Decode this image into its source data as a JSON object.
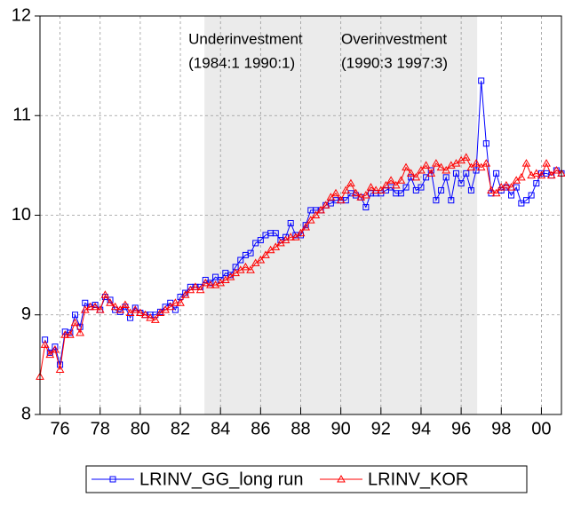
{
  "chart_data": {
    "type": "line",
    "x": [
      1975,
      1975.25,
      1975.5,
      1975.75,
      1976,
      1976.25,
      1976.5,
      1976.75,
      1977,
      1977.25,
      1977.5,
      1977.75,
      1978,
      1978.25,
      1978.5,
      1978.75,
      1979,
      1979.25,
      1979.5,
      1979.75,
      1980,
      1980.25,
      1980.5,
      1980.75,
      1981,
      1981.25,
      1981.5,
      1981.75,
      1982,
      1982.25,
      1982.5,
      1982.75,
      1983,
      1983.25,
      1983.5,
      1983.75,
      1984,
      1984.25,
      1984.5,
      1984.75,
      1985,
      1985.25,
      1985.5,
      1985.75,
      1986,
      1986.25,
      1986.5,
      1986.75,
      1987,
      1987.25,
      1987.5,
      1987.75,
      1988,
      1988.25,
      1988.5,
      1988.75,
      1989,
      1989.25,
      1989.5,
      1989.75,
      1990,
      1990.25,
      1990.5,
      1990.75,
      1991,
      1991.25,
      1991.5,
      1991.75,
      1992,
      1992.25,
      1992.5,
      1992.75,
      1993,
      1993.25,
      1993.5,
      1993.75,
      1994,
      1994.25,
      1994.5,
      1994.75,
      1995,
      1995.25,
      1995.5,
      1995.75,
      1996,
      1996.25,
      1996.5,
      1996.75,
      1997,
      1997.25,
      1997.5,
      1997.75,
      1998,
      1998.25,
      1998.5,
      1998.75,
      1999,
      1999.25,
      1999.5,
      1999.75,
      2000,
      2000.25,
      2000.5,
      2000.75,
      2001
    ],
    "series": [
      {
        "name": "LRINV_GG_long run",
        "color": "#0000ff",
        "marker": "square",
        "values": [
          null,
          8.75,
          8.62,
          8.68,
          8.5,
          8.83,
          8.82,
          9.0,
          8.88,
          9.12,
          9.08,
          9.1,
          9.05,
          9.18,
          9.15,
          9.05,
          9.03,
          9.08,
          8.97,
          9.07,
          9.02,
          9.0,
          9.0,
          9.0,
          9.03,
          9.08,
          9.12,
          9.05,
          9.18,
          9.22,
          9.28,
          9.28,
          9.28,
          9.35,
          9.32,
          9.38,
          9.35,
          9.42,
          9.4,
          9.48,
          9.55,
          9.6,
          9.62,
          9.72,
          9.75,
          9.8,
          9.82,
          9.82,
          9.75,
          9.78,
          9.92,
          9.8,
          9.8,
          9.9,
          10.05,
          10.05,
          10.05,
          10.1,
          10.12,
          10.15,
          10.15,
          10.15,
          10.22,
          10.2,
          10.18,
          10.08,
          10.22,
          10.22,
          10.22,
          10.25,
          10.28,
          10.22,
          10.22,
          10.28,
          10.38,
          10.25,
          10.28,
          10.38,
          10.45,
          10.15,
          10.25,
          10.38,
          10.15,
          10.42,
          10.32,
          10.42,
          10.25,
          10.45,
          11.35,
          10.72,
          10.22,
          10.42,
          10.25,
          10.28,
          10.2,
          10.28,
          10.12,
          10.15,
          10.2,
          10.32,
          10.42,
          10.42,
          10.4,
          10.45,
          10.42
        ]
      },
      {
        "name": "LRINV_KOR",
        "color": "#ff0000",
        "marker": "triangle",
        "values": [
          8.38,
          8.7,
          8.6,
          8.65,
          8.45,
          8.8,
          8.8,
          8.92,
          8.82,
          9.05,
          9.08,
          9.08,
          9.05,
          9.2,
          9.12,
          9.08,
          9.05,
          9.1,
          9.02,
          9.05,
          9.02,
          9.0,
          8.97,
          8.95,
          9.02,
          9.05,
          9.08,
          9.12,
          9.12,
          9.2,
          9.25,
          9.28,
          9.25,
          9.32,
          9.3,
          9.3,
          9.32,
          9.35,
          9.38,
          9.42,
          9.45,
          9.48,
          9.45,
          9.52,
          9.55,
          9.6,
          9.65,
          9.68,
          9.72,
          9.75,
          9.78,
          9.78,
          9.82,
          9.88,
          9.95,
          10.0,
          10.05,
          10.1,
          10.18,
          10.22,
          10.15,
          10.25,
          10.32,
          10.22,
          10.18,
          10.2,
          10.28,
          10.25,
          10.25,
          10.3,
          10.35,
          10.3,
          10.35,
          10.48,
          10.42,
          10.38,
          10.45,
          10.5,
          10.42,
          10.52,
          10.48,
          10.45,
          10.5,
          10.52,
          10.55,
          10.58,
          10.48,
          10.52,
          10.48,
          10.52,
          10.25,
          10.22,
          10.28,
          10.3,
          10.28,
          10.35,
          10.38,
          10.52,
          10.4,
          10.42,
          10.4,
          10.52,
          10.4,
          10.45,
          10.42
        ]
      }
    ],
    "xlim": [
      1975,
      2001
    ],
    "xticks": [
      {
        "value": 1976,
        "label": "76"
      },
      {
        "value": 1978,
        "label": "78"
      },
      {
        "value": 1980,
        "label": "80"
      },
      {
        "value": 1982,
        "label": "82"
      },
      {
        "value": 1984,
        "label": "84"
      },
      {
        "value": 1986,
        "label": "86"
      },
      {
        "value": 1988,
        "label": "88"
      },
      {
        "value": 1990,
        "label": "90"
      },
      {
        "value": 1992,
        "label": "92"
      },
      {
        "value": 1994,
        "label": "94"
      },
      {
        "value": 1996,
        "label": "96"
      },
      {
        "value": 1998,
        "label": "98"
      },
      {
        "value": 2000,
        "label": "00"
      }
    ],
    "ylim": [
      8,
      12
    ],
    "yticks": [
      8,
      9,
      10,
      11,
      12
    ],
    "grid": true,
    "shaded": [
      {
        "start": 1983.2,
        "end": 1989.75,
        "title": "Underinvestment",
        "period": "(1984:1 1990:1)"
      },
      {
        "start": 1989.75,
        "end": 1996.8,
        "title": "Overinvestment",
        "period": "(1990:3 1997:3)"
      }
    ],
    "legend": "bottom"
  }
}
